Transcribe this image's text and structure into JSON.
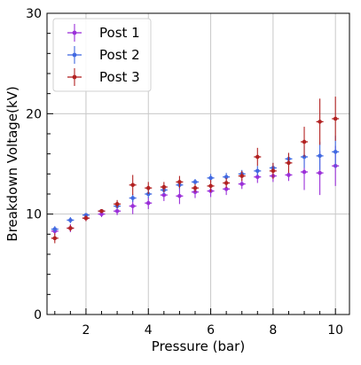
{
  "chart_data": {
    "type": "scatter",
    "xlabel": "Pressure (bar)",
    "ylabel": "Breakdown Voltage(kV)",
    "xlim": [
      0.75,
      10.45
    ],
    "ylim": [
      0,
      30
    ],
    "xticks": [
      2,
      4,
      6,
      8,
      10
    ],
    "yticks": [
      0,
      10,
      20,
      30
    ],
    "grid": true,
    "legend_position": "top-left",
    "series": [
      {
        "name": "Post 1",
        "color": "#9b30d9",
        "x": [
          1.0,
          1.5,
          2.0,
          2.5,
          3.0,
          3.5,
          4.0,
          4.5,
          5.0,
          5.5,
          6.0,
          6.5,
          7.0,
          7.5,
          8.0,
          8.5,
          9.0,
          9.5,
          10.0
        ],
        "y": [
          8.3,
          8.6,
          9.6,
          10.0,
          10.3,
          10.8,
          11.1,
          11.9,
          11.8,
          12.2,
          12.3,
          12.5,
          13.0,
          13.7,
          13.8,
          13.9,
          14.2,
          14.1,
          14.8
        ],
        "err": [
          0.4,
          0.4,
          0.3,
          0.3,
          0.4,
          0.8,
          0.6,
          0.6,
          0.8,
          0.6,
          0.6,
          0.6,
          0.5,
          0.6,
          0.6,
          0.6,
          1.8,
          2.2,
          2.0
        ]
      },
      {
        "name": "Post 2",
        "color": "#4169e1",
        "x": [
          1.0,
          1.5,
          2.0,
          2.5,
          3.0,
          3.5,
          4.0,
          4.5,
          5.0,
          5.5,
          6.0,
          6.5,
          7.0,
          7.5,
          8.0,
          8.5,
          9.0,
          9.5,
          10.0
        ],
        "y": [
          8.5,
          9.4,
          9.9,
          10.3,
          10.8,
          11.6,
          12.0,
          12.4,
          12.9,
          13.2,
          13.6,
          13.7,
          14.0,
          14.3,
          14.6,
          15.5,
          15.7,
          15.8,
          16.2
        ],
        "err": [
          0.3,
          0.3,
          0.2,
          0.2,
          0.3,
          0.4,
          0.4,
          0.4,
          0.4,
          0.3,
          0.4,
          0.4,
          0.4,
          0.5,
          0.5,
          0.6,
          1.1,
          1.4,
          1.6
        ]
      },
      {
        "name": "Post 3",
        "color": "#b22222",
        "x": [
          1.0,
          1.5,
          2.0,
          2.5,
          3.0,
          3.5,
          4.0,
          4.5,
          5.0,
          5.5,
          6.0,
          6.5,
          7.0,
          7.5,
          8.0,
          8.5,
          9.0,
          9.5,
          10.0
        ],
        "y": [
          7.6,
          8.6,
          9.6,
          10.3,
          11.0,
          12.9,
          12.6,
          12.7,
          13.2,
          12.6,
          12.8,
          13.1,
          13.8,
          15.7,
          14.3,
          15.1,
          17.2,
          19.2,
          19.5
        ],
        "err": [
          0.5,
          0.3,
          0.3,
          0.2,
          0.4,
          1.0,
          0.6,
          0.5,
          0.6,
          0.4,
          0.6,
          0.5,
          0.5,
          0.9,
          0.8,
          1.0,
          1.5,
          2.3,
          2.2
        ]
      }
    ]
  }
}
